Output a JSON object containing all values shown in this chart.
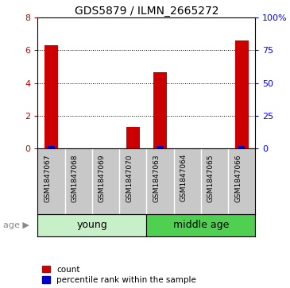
{
  "title": "GDS5879 / ILMN_2665272",
  "samples": [
    "GSM1847067",
    "GSM1847068",
    "GSM1847069",
    "GSM1847070",
    "GSM1847063",
    "GSM1847064",
    "GSM1847065",
    "GSM1847066"
  ],
  "count_values": [
    6.3,
    0.0,
    0.0,
    1.3,
    4.65,
    0.0,
    0.0,
    6.6
  ],
  "percentile_values": [
    2.0,
    0.0,
    0.0,
    0.4,
    1.7,
    0.0,
    0.0,
    2.0
  ],
  "groups": [
    {
      "label": "young",
      "start": 0,
      "end": 4,
      "color": "#c8f0c8"
    },
    {
      "label": "middle age",
      "start": 4,
      "end": 8,
      "color": "#50d050"
    }
  ],
  "ylim_left": [
    0,
    8
  ],
  "ylim_right": [
    0,
    100
  ],
  "yticks_left": [
    0,
    2,
    4,
    6,
    8
  ],
  "yticks_right": [
    0,
    25,
    50,
    75,
    100
  ],
  "bar_color_red": "#cc0000",
  "bar_color_blue": "#0000cc",
  "bar_width": 0.5,
  "bg_color": "#ffffff",
  "sample_area_color": "#c8c8c8",
  "age_label": "age",
  "legend_count": "count",
  "legend_percentile": "percentile rank within the sample",
  "title_fontsize": 10
}
